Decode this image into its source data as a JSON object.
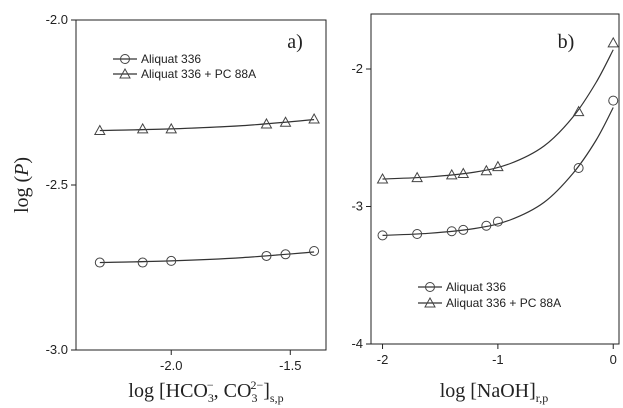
{
  "chart_data": [
    {
      "panel_label": "a)",
      "type": "scatter",
      "ylabel_prefix": "log (",
      "ylabel_var": "P",
      "ylabel_suffix": ")",
      "xlim": [
        -2.4,
        -1.35
      ],
      "ylim": [
        -3.0,
        -2.0
      ],
      "xticks": [
        -2.0,
        -1.5
      ],
      "xtick_labels": [
        "-2.0",
        "-1.5"
      ],
      "yticks": [
        -3.0,
        -2.5,
        -2.0
      ],
      "ytick_labels": [
        "-3.0",
        "-2.5",
        "-2.0"
      ],
      "legend_placement": "top",
      "series": [
        {
          "name": "Aliquat 336",
          "marker": "circle",
          "x": [
            -2.3,
            -2.12,
            -2.0,
            -1.6,
            -1.52,
            -1.4
          ],
          "y": [
            -2.735,
            -2.735,
            -2.73,
            -2.715,
            -2.71,
            -2.7
          ],
          "fit": [
            [
              -2.3,
              -2.735
            ],
            [
              -2.0,
              -2.73
            ],
            [
              -1.7,
              -2.72
            ],
            [
              -1.4,
              -2.703
            ]
          ]
        },
        {
          "name": "Aliquat 336 + PC 88A",
          "marker": "triangle",
          "x": [
            -2.3,
            -2.12,
            -2.0,
            -1.6,
            -1.52,
            -1.4
          ],
          "y": [
            -2.335,
            -2.33,
            -2.33,
            -2.315,
            -2.31,
            -2.3
          ],
          "fit": [
            [
              -2.3,
              -2.335
            ],
            [
              -2.0,
              -2.33
            ],
            [
              -1.7,
              -2.32
            ],
            [
              -1.4,
              -2.302
            ]
          ]
        }
      ]
    },
    {
      "panel_label": "b)",
      "type": "scatter",
      "xlim": [
        -2.1,
        0.05
      ],
      "ylim": [
        -4.0,
        -1.6
      ],
      "xticks": [
        -2,
        -1,
        0
      ],
      "xtick_labels": [
        "-2",
        "-1",
        "0"
      ],
      "yticks": [
        -4,
        -3,
        -2
      ],
      "ytick_labels": [
        "-4",
        "-3",
        "-2"
      ],
      "legend_placement": "bottom",
      "series": [
        {
          "name": "Aliquat 336",
          "marker": "circle",
          "x": [
            -2.0,
            -1.7,
            -1.4,
            -1.3,
            -1.1,
            -1.0,
            -0.3,
            0.0
          ],
          "y": [
            -3.21,
            -3.2,
            -3.18,
            -3.17,
            -3.14,
            -3.11,
            -2.72,
            -2.23
          ],
          "fit": [
            [
              -2.0,
              -3.21
            ],
            [
              -1.6,
              -3.195
            ],
            [
              -1.2,
              -3.16
            ],
            [
              -0.9,
              -3.1
            ],
            [
              -0.6,
              -2.97
            ],
            [
              -0.35,
              -2.76
            ],
            [
              -0.15,
              -2.52
            ],
            [
              0.0,
              -2.28
            ]
          ]
        },
        {
          "name": "Aliquat 336 + PC 88A",
          "marker": "triangle",
          "x": [
            -2.0,
            -1.7,
            -1.4,
            -1.3,
            -1.1,
            -1.0,
            -0.3,
            0.0
          ],
          "y": [
            -2.8,
            -2.79,
            -2.77,
            -2.76,
            -2.74,
            -2.71,
            -2.31,
            -1.81
          ],
          "fit": [
            [
              -2.0,
              -2.8
            ],
            [
              -1.6,
              -2.785
            ],
            [
              -1.2,
              -2.75
            ],
            [
              -0.9,
              -2.69
            ],
            [
              -0.6,
              -2.56
            ],
            [
              -0.35,
              -2.35
            ],
            [
              -0.15,
              -2.1
            ],
            [
              0.0,
              -1.86
            ]
          ]
        }
      ]
    }
  ],
  "xlabel_a": {
    "prefix": "log [HCO",
    "sub1": "3",
    "sup1": "−",
    "mid": ",  CO",
    "sub2": "3",
    "sup2": "2−",
    "close": "]",
    "sub3": "s,p"
  },
  "xlabel_b": {
    "prefix": "log [NaOH]",
    "sub": "r,p"
  }
}
